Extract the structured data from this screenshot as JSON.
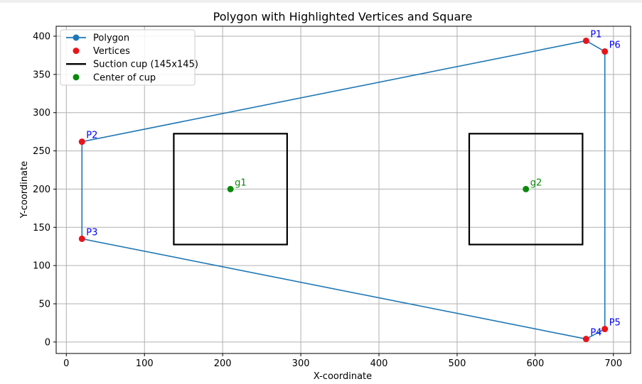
{
  "chart_data": {
    "type": "scatter",
    "title": "Polygon with Highlighted Vertices and Square",
    "xlabel": "X-coordinate",
    "ylabel": "Y-coordinate",
    "xlim": [
      -13,
      722
    ],
    "ylim": [
      -15,
      413
    ],
    "xticks": [
      0,
      100,
      200,
      300,
      400,
      500,
      600,
      700
    ],
    "yticks": [
      0,
      50,
      100,
      150,
      200,
      250,
      300,
      350,
      400
    ],
    "grid": true,
    "legend_position": "top-left",
    "legend": [
      {
        "label": "Polygon",
        "kind": "line-marker",
        "color": "#1f77b4"
      },
      {
        "label": "Vertices",
        "kind": "marker",
        "color": "#e8141b"
      },
      {
        "label": "Suction cup (145x145)",
        "kind": "line",
        "color": "#000000"
      },
      {
        "label": "Center of cup",
        "kind": "marker",
        "color": "#0a8a0a"
      }
    ],
    "polygon": {
      "name": "Polygon",
      "color": "#1f77b4",
      "x": [
        665,
        20,
        20,
        665,
        689,
        689,
        665
      ],
      "y": [
        394,
        262,
        135,
        4,
        17,
        380,
        394
      ]
    },
    "vertices": [
      {
        "label": "P1",
        "x": 665,
        "y": 394
      },
      {
        "label": "P2",
        "x": 20,
        "y": 262
      },
      {
        "label": "P3",
        "x": 20,
        "y": 135
      },
      {
        "label": "P4",
        "x": 665,
        "y": 4
      },
      {
        "label": "P5",
        "x": 689,
        "y": 17
      },
      {
        "label": "P6",
        "x": 689,
        "y": 380
      }
    ],
    "vertex_color": "#e8141b",
    "vertex_label_color": "#0000ff",
    "squares": [
      {
        "name": "g1",
        "cx": 210,
        "cy": 200,
        "size": 145
      },
      {
        "name": "g2",
        "cx": 588,
        "cy": 200,
        "size": 145
      }
    ],
    "square_color": "#000000",
    "centers": [
      {
        "label": "g1",
        "x": 210,
        "y": 200
      },
      {
        "label": "g2",
        "x": 588,
        "y": 200
      }
    ],
    "center_color": "#0a8a0a"
  }
}
